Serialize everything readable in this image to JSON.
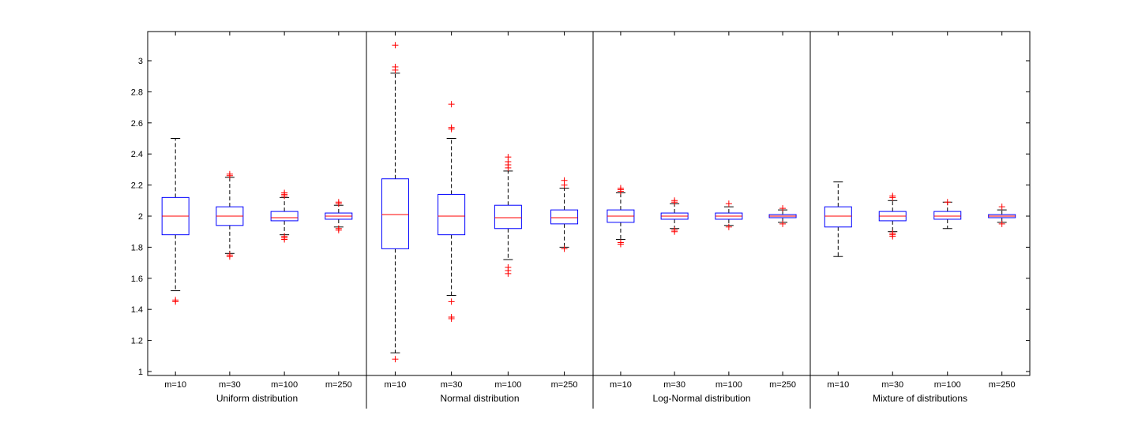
{
  "colors": {
    "axis": "#000000",
    "box": "#0000ff",
    "median": "#ff0000",
    "outlier": "#ff0000",
    "whisker": "#000000",
    "background": "#ffffff"
  },
  "chart_data": {
    "type": "boxplot",
    "ylim": [
      0.98,
      3.2
    ],
    "yticks": [
      1,
      1.2,
      1.4,
      1.6,
      1.8,
      2,
      2.2,
      2.4,
      2.6,
      2.8,
      3
    ],
    "ytick_labels": [
      "1",
      "1.2",
      "1.4",
      "1.6",
      "1.8",
      "2",
      "2.2",
      "2.4",
      "2.6",
      "2.8",
      "3"
    ],
    "categories": [
      "m=10",
      "m=30",
      "m=100",
      "m=250"
    ],
    "groups": [
      {
        "label": "Uniform distribution",
        "boxes": [
          {
            "category": "m=10",
            "q1": 1.88,
            "median": 2.0,
            "q3": 2.12,
            "wlo": 1.52,
            "whi": 2.5,
            "outliers": [
              1.45,
              1.46
            ]
          },
          {
            "category": "m=30",
            "q1": 1.94,
            "median": 2.0,
            "q3": 2.06,
            "wlo": 1.76,
            "whi": 2.25,
            "outliers": [
              1.74,
              1.75,
              2.26,
              2.27
            ]
          },
          {
            "category": "m=100",
            "q1": 1.97,
            "median": 1.99,
            "q3": 2.03,
            "wlo": 1.88,
            "whi": 2.12,
            "outliers": [
              1.85,
              1.86,
              1.87,
              2.13,
              2.14,
              2.15
            ]
          },
          {
            "category": "m=250",
            "q1": 1.98,
            "median": 2.0,
            "q3": 2.02,
            "wlo": 1.93,
            "whi": 2.07,
            "outliers": [
              1.91,
              1.92,
              2.08,
              2.09
            ]
          }
        ]
      },
      {
        "label": "Normal distribution",
        "boxes": [
          {
            "category": "m=10",
            "q1": 1.79,
            "median": 2.01,
            "q3": 2.24,
            "wlo": 1.12,
            "whi": 2.92,
            "outliers": [
              1.08,
              2.94,
              2.96,
              3.1
            ]
          },
          {
            "category": "m=30",
            "q1": 1.88,
            "median": 2.0,
            "q3": 2.14,
            "wlo": 1.49,
            "whi": 2.5,
            "outliers": [
              1.34,
              1.35,
              1.45,
              2.56,
              2.57,
              2.72
            ]
          },
          {
            "category": "m=100",
            "q1": 1.92,
            "median": 1.99,
            "q3": 2.07,
            "wlo": 1.72,
            "whi": 2.29,
            "outliers": [
              1.63,
              1.65,
              1.67,
              2.31,
              2.33,
              2.35,
              2.38
            ]
          },
          {
            "category": "m=250",
            "q1": 1.95,
            "median": 1.99,
            "q3": 2.04,
            "wlo": 1.8,
            "whi": 2.18,
            "outliers": [
              1.79,
              2.2,
              2.23
            ]
          }
        ]
      },
      {
        "label": "Log-Normal distribution",
        "boxes": [
          {
            "category": "m=10",
            "q1": 1.96,
            "median": 2.0,
            "q3": 2.04,
            "wlo": 1.85,
            "whi": 2.15,
            "outliers": [
              1.82,
              1.83,
              2.16,
              2.17,
              2.18
            ]
          },
          {
            "category": "m=30",
            "q1": 1.98,
            "median": 2.0,
            "q3": 2.02,
            "wlo": 1.92,
            "whi": 2.08,
            "outliers": [
              1.9,
              1.91,
              2.09,
              2.1
            ]
          },
          {
            "category": "m=100",
            "q1": 1.98,
            "median": 2.0,
            "q3": 2.02,
            "wlo": 1.94,
            "whi": 2.06,
            "outliers": [
              1.93,
              2.08
            ]
          },
          {
            "category": "m=250",
            "q1": 1.99,
            "median": 2.0,
            "q3": 2.01,
            "wlo": 1.96,
            "whi": 2.04,
            "outliers": [
              1.95,
              2.05
            ]
          }
        ]
      },
      {
        "label": "Mixture of distributions",
        "boxes": [
          {
            "category": "m=10",
            "q1": 1.93,
            "median": 2.0,
            "q3": 2.06,
            "wlo": 1.74,
            "whi": 2.22,
            "outliers": []
          },
          {
            "category": "m=30",
            "q1": 1.97,
            "median": 2.0,
            "q3": 2.03,
            "wlo": 1.9,
            "whi": 2.1,
            "outliers": [
              1.87,
              1.88,
              1.89,
              2.12,
              2.13
            ]
          },
          {
            "category": "m=100",
            "q1": 1.98,
            "median": 2.0,
            "q3": 2.03,
            "wlo": 1.92,
            "whi": 2.09,
            "outliers": [
              2.09
            ]
          },
          {
            "category": "m=250",
            "q1": 1.99,
            "median": 2.0,
            "q3": 2.01,
            "wlo": 1.96,
            "whi": 2.04,
            "outliers": [
              1.95,
              2.06
            ]
          }
        ]
      }
    ]
  }
}
